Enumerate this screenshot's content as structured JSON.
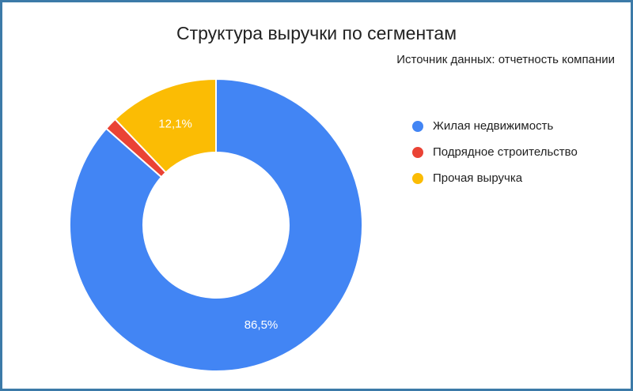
{
  "chart_data": {
    "type": "pie",
    "title": "Структура выручки по сегментам",
    "subtitle": "Источник данных: отчетность компании",
    "categories": [
      "Жилая недвижимость",
      "Подрядное строительство",
      "Прочая выручка"
    ],
    "values": [
      86.5,
      1.4,
      12.1
    ],
    "labels": [
      "86,5%",
      "",
      "12,1%"
    ],
    "colors": [
      "#4285f4",
      "#ea4335",
      "#fbbc04"
    ],
    "donut": true,
    "legend_position": "right"
  }
}
